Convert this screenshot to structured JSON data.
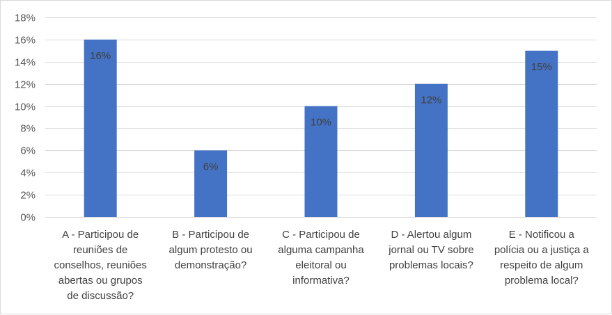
{
  "chart_data": {
    "type": "bar",
    "title": "",
    "xlabel": "",
    "ylabel": "",
    "ylim": [
      0,
      18
    ],
    "ytick_step": 2,
    "ytick_format": "percent",
    "grid": true,
    "legend": "none",
    "bar_color": "#4472c4",
    "categories": [
      [
        "A - Participou de",
        "reuniões de",
        "conselhos, reuniões",
        "abertas ou grupos",
        "de discussão?"
      ],
      [
        "B - Participou de",
        "algum protesto ou",
        "demonstração?"
      ],
      [
        "C - Participou de",
        "alguma campanha",
        "eleitoral ou",
        "informativa?"
      ],
      [
        "D - Alertou algum",
        "jornal ou TV sobre",
        "problemas locais?"
      ],
      [
        "E - Notificou a",
        "polícia ou a justiça a",
        "respeito de algum",
        "problema local?"
      ]
    ],
    "values": [
      16,
      6,
      10,
      12,
      15
    ],
    "data_labels": [
      "16%",
      "6%",
      "10%",
      "12%",
      "15%"
    ]
  }
}
